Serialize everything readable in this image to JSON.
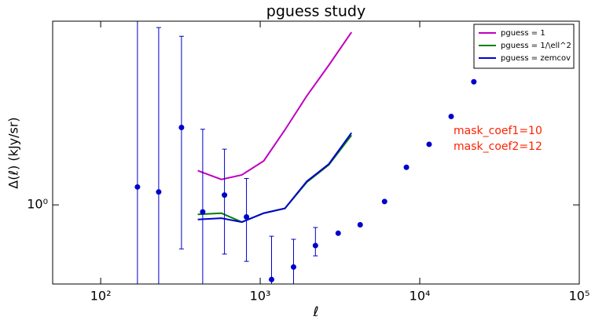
{
  "chart_data": {
    "type": "line",
    "title": "pguess study",
    "xlabel": "ℓ",
    "ylabel": "Δ(ℓ) (kJy/sr)",
    "xscale": "log",
    "yscale": "log",
    "xlim": [
      50,
      100000
    ],
    "ylim": [
      0.5,
      5
    ],
    "xticks": [
      {
        "value": 100,
        "label": "10²"
      },
      {
        "value": 1000,
        "label": "10³"
      },
      {
        "value": 10000,
        "label": "10⁴"
      },
      {
        "value": 100000,
        "label": "10⁵"
      }
    ],
    "yticks": [
      {
        "value": 1,
        "label": "10⁰"
      }
    ],
    "legend": "upper right",
    "annotations": [
      "mask_coef1=10",
      "mask_coef2=12"
    ],
    "annotation_color": "#ff2200",
    "series": [
      {
        "name": "pguess = 1",
        "color": "#bf00bf",
        "x": [
          406,
          571,
          767,
          1052,
          1429,
          1960,
          2691,
          3733
        ],
        "values": [
          1.35,
          1.25,
          1.3,
          1.47,
          1.93,
          2.6,
          3.4,
          4.54
        ]
      },
      {
        "name": "pguess = 1/\\ell^2",
        "color": "#008000",
        "x": [
          406,
          571,
          767,
          1052,
          1429,
          1960,
          2691,
          3733
        ],
        "values": [
          0.92,
          0.93,
          0.86,
          0.93,
          0.97,
          1.22,
          1.42,
          1.84
        ]
      },
      {
        "name": "pguess = zemcov",
        "color": "#0000cc",
        "x": [
          406,
          571,
          767,
          1052,
          1429,
          1960,
          2691,
          3733
        ],
        "values": [
          0.88,
          0.89,
          0.86,
          0.93,
          0.97,
          1.23,
          1.43,
          1.88
        ]
      },
      {
        "color": "#0000cc",
        "marker": "o",
        "x": [
          170,
          231,
          321,
          436,
          597,
          820,
          1178,
          1618,
          2219,
          3081,
          4233,
          6017,
          8248,
          11450,
          15740,
          21830
        ],
        "values": [
          1.17,
          1.12,
          1.97,
          0.94,
          1.09,
          0.9,
          0.52,
          0.58,
          0.7,
          0.78,
          0.84,
          1.03,
          1.39,
          1.7,
          2.17,
          2.94
        ],
        "err_minus": [
          1.2,
          1.2,
          1.29,
          1.0,
          0.44,
          0.29,
          0.52,
          0.58,
          0.06,
          null,
          null,
          null,
          null,
          null,
          null,
          null
        ],
        "err_plus": [
          4.5,
          3.61,
          2.41,
          1.0,
          0.54,
          0.36,
          0.24,
          0.16,
          0.12,
          null,
          null,
          null,
          null,
          null,
          null,
          null
        ]
      }
    ]
  }
}
